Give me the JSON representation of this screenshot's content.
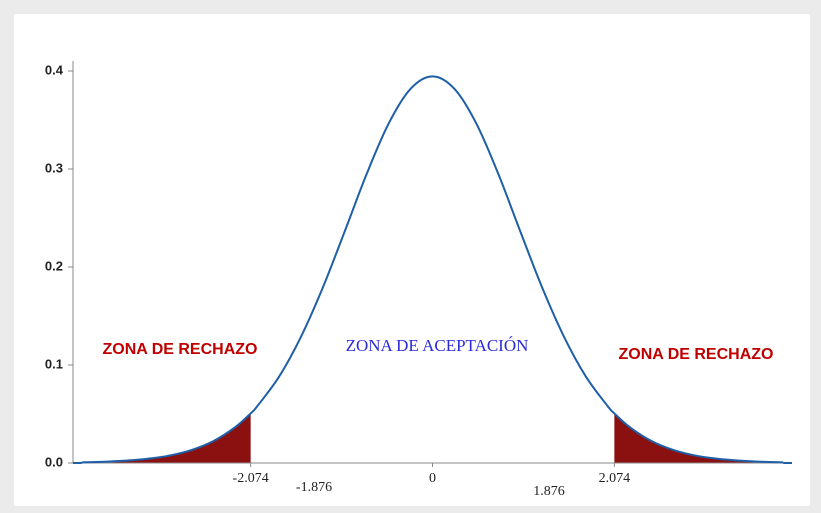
{
  "chart_data": {
    "type": "line",
    "x": [
      -4,
      -3.75,
      -3.5,
      -3.25,
      -3,
      -2.75,
      -2.5,
      -2.25,
      -2.074,
      -2,
      -1.75,
      -1.5,
      -1.25,
      -1,
      -0.75,
      -0.5,
      -0.25,
      0,
      0.25,
      0.5,
      0.75,
      1,
      1.25,
      1.5,
      1.75,
      2,
      2.074,
      2.25,
      2.5,
      2.75,
      3,
      3.25,
      3.5,
      3.75,
      4
    ],
    "series": [
      {
        "color": "#1f5fa8",
        "values": [
          0.0007,
          0.0013,
          0.0024,
          0.0043,
          0.0076,
          0.0132,
          0.0223,
          0.0365,
          0.0506,
          0.0578,
          0.0881,
          0.1288,
          0.1792,
          0.2366,
          0.2951,
          0.3464,
          0.3818,
          0.3945,
          0.3818,
          0.3464,
          0.2951,
          0.2366,
          0.1792,
          0.1288,
          0.0881,
          0.0578,
          0.0506,
          0.0365,
          0.0223,
          0.0132,
          0.0076,
          0.0043,
          0.0024,
          0.0013,
          0.0007
        ]
      }
    ],
    "shade_color": "#8b1010",
    "xlim": [
      -4.1,
      4.1
    ],
    "xticks": [
      -2.074,
      0,
      2.074
    ],
    "ylim": [
      0,
      0.4
    ],
    "yticks": [
      {
        "value": 0,
        "label": "0.0"
      },
      0.1,
      0.2,
      0.3,
      0.4
    ],
    "annotations": [
      "ZONA DE RECHAZO",
      "ZONA DE ACEPTACIÓN",
      "ZONA DE RECHAZO",
      "-1.876",
      "1.876"
    ]
  }
}
